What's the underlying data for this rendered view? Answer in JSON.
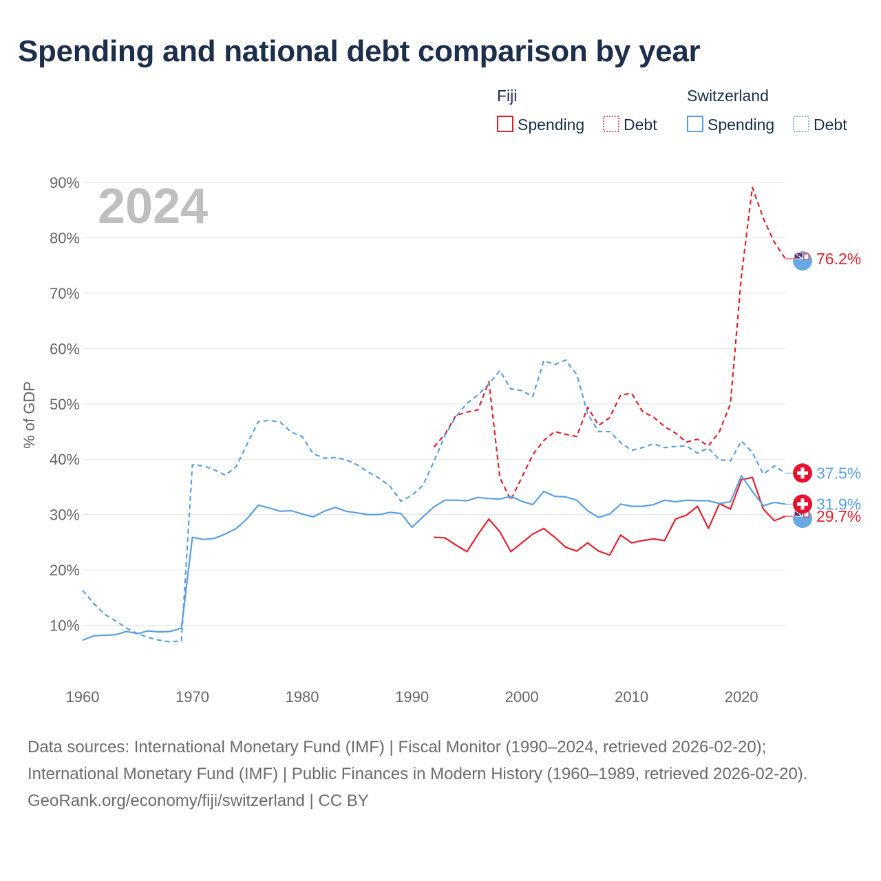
{
  "chart_data": {
    "type": "line",
    "title": "Spending and national debt comparison by year",
    "year_watermark": "2024",
    "ylabel": "% of GDP",
    "xlabel": "",
    "xlim": [
      1960,
      2024
    ],
    "ylim": [
      0,
      90
    ],
    "y_ticks": [
      10,
      20,
      30,
      40,
      50,
      60,
      70,
      80,
      90
    ],
    "y_tick_labels": [
      "10%",
      "20%",
      "30%",
      "40%",
      "50%",
      "60%",
      "70%",
      "80%",
      "90%"
    ],
    "x_ticks": [
      1960,
      1970,
      1980,
      1990,
      2000,
      2010,
      2020
    ],
    "x_tick_labels": [
      "1960",
      "1970",
      "1980",
      "1990",
      "2000",
      "2010",
      "2020"
    ],
    "grid": true,
    "legend": {
      "placement": "top-right",
      "groups": [
        {
          "country": "Fiji",
          "items": [
            "Spending",
            "Debt"
          ],
          "color": "#e0202c"
        },
        {
          "country": "Switzerland",
          "items": [
            "Spending",
            "Debt"
          ],
          "color": "#5aa0e0"
        }
      ]
    },
    "series": [
      {
        "name": "Fiji Spending",
        "country": "Fiji",
        "metric": "Spending",
        "color": "#e0202c",
        "dashed": false,
        "end_label": "29.7%",
        "end_value": 29.7,
        "x": [
          1992,
          1993,
          1994,
          1995,
          1996,
          1997,
          1998,
          1999,
          2000,
          2001,
          2002,
          2003,
          2004,
          2005,
          2006,
          2007,
          2008,
          2009,
          2010,
          2011,
          2012,
          2013,
          2014,
          2015,
          2016,
          2017,
          2018,
          2019,
          2020,
          2021,
          2022,
          2023,
          2024
        ],
        "values": [
          25.9,
          25.8,
          24.5,
          23.3,
          26.4,
          29.2,
          26.9,
          23.3,
          24.9,
          26.5,
          27.5,
          25.9,
          24.1,
          23.4,
          24.9,
          23.4,
          22.7,
          26.3,
          24.9,
          25.3,
          25.6,
          25.3,
          29.2,
          29.9,
          31.5,
          27.5,
          32.0,
          31.0,
          36.3,
          36.7,
          31.0,
          28.9,
          29.7
        ]
      },
      {
        "name": "Fiji Debt",
        "country": "Fiji",
        "metric": "Debt",
        "color": "#e0202c",
        "dashed": true,
        "end_label": "76.2%",
        "end_value": 76.2,
        "x": [
          1992,
          1993,
          1994,
          1995,
          1996,
          1997,
          1998,
          1999,
          2000,
          2001,
          2002,
          2003,
          2004,
          2005,
          2006,
          2007,
          2008,
          2009,
          2010,
          2011,
          2012,
          2013,
          2014,
          2015,
          2016,
          2017,
          2018,
          2019,
          2020,
          2021,
          2022,
          2023,
          2024
        ],
        "values": [
          42.2,
          44.5,
          47.9,
          48.5,
          48.9,
          54.0,
          36.7,
          32.6,
          36.7,
          40.8,
          43.4,
          45.0,
          44.5,
          44.1,
          49.4,
          46.1,
          47.5,
          51.6,
          51.9,
          48.6,
          47.6,
          45.9,
          44.7,
          43.1,
          43.6,
          42.4,
          45.0,
          50.0,
          73.1,
          89.1,
          83.5,
          79.2,
          76.2
        ]
      },
      {
        "name": "Switzerland Spending",
        "country": "Switzerland",
        "metric": "Spending",
        "color": "#5aa0e0",
        "dashed": false,
        "end_label": "31.9%",
        "end_value": 31.9,
        "x": [
          1960,
          1961,
          1962,
          1963,
          1964,
          1965,
          1966,
          1967,
          1968,
          1969,
          1970,
          1971,
          1972,
          1973,
          1974,
          1975,
          1976,
          1977,
          1978,
          1979,
          1980,
          1981,
          1982,
          1983,
          1984,
          1985,
          1986,
          1987,
          1988,
          1989,
          1990,
          1991,
          1992,
          1993,
          1994,
          1995,
          1996,
          1997,
          1998,
          1999,
          2000,
          2001,
          2002,
          2003,
          2004,
          2005,
          2006,
          2007,
          2008,
          2009,
          2010,
          2011,
          2012,
          2013,
          2014,
          2015,
          2016,
          2017,
          2018,
          2019,
          2020,
          2021,
          2022,
          2023,
          2024
        ],
        "values": [
          7.3,
          8.1,
          8.2,
          8.3,
          8.9,
          8.5,
          9.0,
          8.8,
          8.9,
          9.5,
          25.9,
          25.5,
          25.7,
          26.5,
          27.5,
          29.3,
          31.7,
          31.2,
          30.6,
          30.7,
          30.1,
          29.6,
          30.6,
          31.3,
          30.6,
          30.3,
          30.0,
          30.0,
          30.4,
          30.2,
          27.7,
          29.6,
          31.4,
          32.6,
          32.6,
          32.5,
          33.1,
          32.9,
          32.8,
          33.3,
          32.4,
          31.8,
          34.2,
          33.3,
          33.2,
          32.6,
          30.7,
          29.5,
          30.1,
          31.9,
          31.5,
          31.5,
          31.8,
          32.6,
          32.3,
          32.6,
          32.5,
          32.5,
          32.0,
          32.3,
          37.0,
          34.2,
          31.6,
          32.2,
          31.9
        ]
      },
      {
        "name": "Switzerland Debt",
        "country": "Switzerland",
        "metric": "Debt",
        "color": "#5aa0e0",
        "dashed": true,
        "end_label": "37.5%",
        "end_value": 37.5,
        "x": [
          1960,
          1961,
          1962,
          1963,
          1964,
          1965,
          1966,
          1967,
          1968,
          1969,
          1970,
          1971,
          1972,
          1973,
          1974,
          1975,
          1976,
          1977,
          1978,
          1979,
          1980,
          1981,
          1982,
          1983,
          1984,
          1985,
          1986,
          1987,
          1988,
          1989,
          1990,
          1991,
          1992,
          1993,
          1994,
          1995,
          1996,
          1997,
          1998,
          1999,
          2000,
          2001,
          2002,
          2003,
          2004,
          2005,
          2006,
          2007,
          2008,
          2009,
          2010,
          2011,
          2012,
          2013,
          2014,
          2015,
          2016,
          2017,
          2018,
          2019,
          2020,
          2021,
          2022,
          2023,
          2024
        ],
        "values": [
          16.3,
          14.0,
          12.0,
          10.8,
          9.5,
          8.5,
          7.8,
          7.3,
          7.0,
          7.2,
          39.0,
          38.8,
          38.1,
          37.1,
          38.7,
          42.8,
          46.8,
          47.0,
          46.7,
          44.9,
          44.1,
          41.0,
          40.2,
          40.3,
          39.9,
          39.0,
          37.7,
          36.6,
          35.1,
          32.4,
          33.5,
          35.3,
          39.6,
          44.3,
          47.7,
          50.1,
          51.6,
          53.6,
          56.0,
          52.7,
          52.4,
          51.3,
          57.8,
          57.1,
          57.9,
          55.3,
          48.2,
          45.0,
          45.0,
          43.0,
          41.6,
          42.1,
          42.8,
          42.1,
          42.3,
          42.4,
          41.1,
          42.0,
          39.9,
          39.7,
          43.3,
          41.2,
          37.3,
          38.8,
          37.5
        ]
      }
    ]
  },
  "footer": {
    "sources": "Data sources: International Monetary Fund (IMF) | Fiscal Monitor (1990–2024, retrieved 2026-02-20); International Monetary Fund (IMF) | Public Finances in Modern History (1960–1989, retrieved 2026-02-20).",
    "credit": "GeoRank.org/economy/fiji/switzerland | CC BY"
  }
}
